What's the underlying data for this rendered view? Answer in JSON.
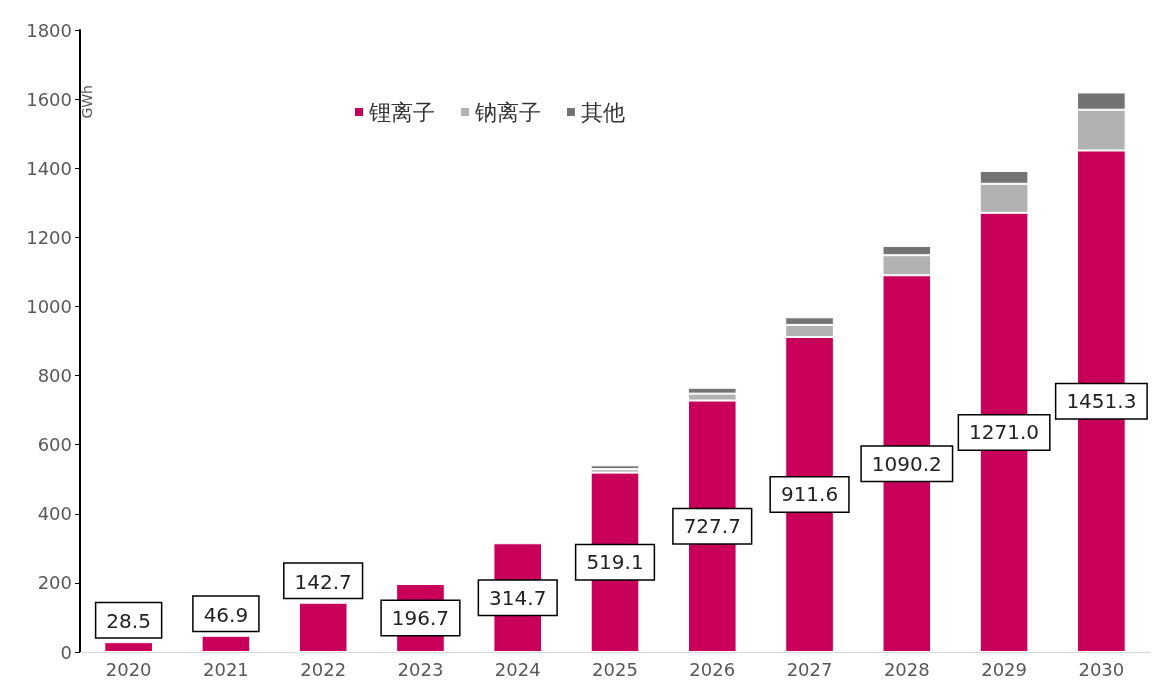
{
  "chart_data": {
    "type": "bar",
    "stacked": true,
    "ylabel": "GWh",
    "categories": [
      "2020",
      "2021",
      "2022",
      "2023",
      "2024",
      "2025",
      "2026",
      "2027",
      "2028",
      "2029",
      "2030"
    ],
    "series": [
      {
        "name": "锂离子",
        "color": "#c8005a",
        "values": [
          28.5,
          46.9,
          142.7,
          196.7,
          314.7,
          519.1,
          727.7,
          911.6,
          1090.2,
          1271.0,
          1451.3
        ],
        "value_labels": [
          "28.5",
          "46.9",
          "142.7",
          "196.7",
          "314.7",
          "519.1",
          "727.7",
          "911.6",
          "1090.2",
          "1271.0",
          "1451.3"
        ]
      },
      {
        "name": "钠离子",
        "color": "#b2b2b2",
        "values": [
          null,
          null,
          null,
          null,
          null,
          10,
          20,
          35,
          58,
          84,
          118
        ]
      },
      {
        "name": "其他",
        "color": "#737373",
        "values": [
          null,
          null,
          null,
          null,
          null,
          11,
          17,
          22,
          27,
          37,
          50
        ]
      }
    ],
    "ylim": [
      0,
      1800
    ],
    "yticks": [
      0,
      200,
      400,
      600,
      800,
      1000,
      1200,
      1400,
      1600,
      1800
    ],
    "grid": false,
    "legend": "top"
  }
}
